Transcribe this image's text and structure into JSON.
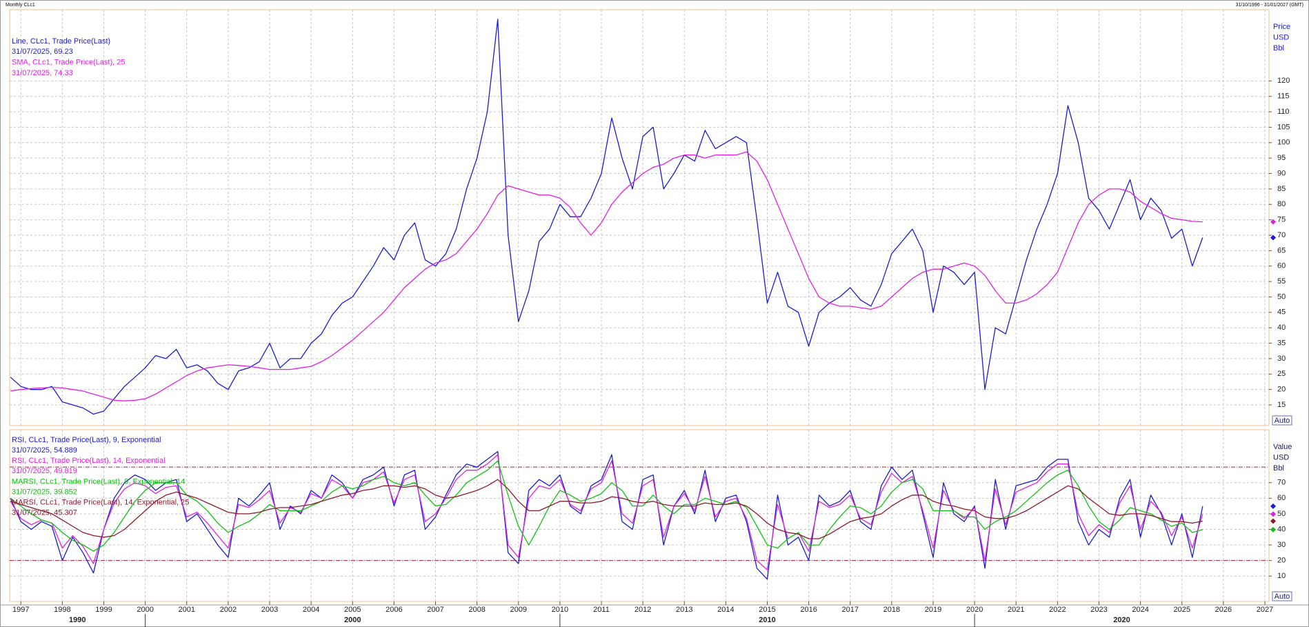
{
  "chart_data": [
    {
      "type": "line",
      "title": "Monthly CLc1",
      "subtitle": "31/10/1996 - 31/01/2027 (GMT)",
      "xlim": [
        1996.73,
        2027.1
      ],
      "ylim": [
        8.3,
        143.1
      ],
      "yticks": [
        15,
        20,
        25,
        30,
        35,
        40,
        45,
        50,
        55,
        60,
        65,
        70,
        75,
        80,
        85,
        90,
        95,
        100,
        105,
        110,
        115,
        120
      ],
      "grid": true,
      "y_label": [
        "Price",
        "USD",
        "Bbl"
      ],
      "auto_label": "Auto",
      "x": [
        1996.75,
        1997,
        1997.25,
        1997.5,
        1997.75,
        1998,
        1998.25,
        1998.5,
        1998.75,
        1999,
        1999.25,
        1999.5,
        1999.75,
        2000,
        2000.25,
        2000.5,
        2000.75,
        2001,
        2001.25,
        2001.5,
        2001.75,
        2002,
        2002.25,
        2002.5,
        2002.75,
        2003,
        2003.25,
        2003.5,
        2003.75,
        2004,
        2004.25,
        2004.5,
        2004.75,
        2005,
        2005.25,
        2005.5,
        2005.75,
        2006,
        2006.25,
        2006.5,
        2006.75,
        2007,
        2007.25,
        2007.5,
        2007.75,
        2008,
        2008.25,
        2008.5,
        2008.75,
        2009,
        2009.25,
        2009.5,
        2009.75,
        2010,
        2010.25,
        2010.5,
        2010.75,
        2011,
        2011.25,
        2011.5,
        2011.75,
        2012,
        2012.25,
        2012.5,
        2012.75,
        2013,
        2013.25,
        2013.5,
        2013.75,
        2014,
        2014.25,
        2014.5,
        2014.75,
        2015,
        2015.25,
        2015.5,
        2015.75,
        2016,
        2016.25,
        2016.5,
        2016.75,
        2017,
        2017.25,
        2017.5,
        2017.75,
        2018,
        2018.25,
        2018.5,
        2018.75,
        2019,
        2019.25,
        2019.5,
        2019.75,
        2020,
        2020.25,
        2020.5,
        2020.75,
        2021,
        2021.25,
        2021.5,
        2021.75,
        2022,
        2022.25,
        2022.5,
        2022.75,
        2023,
        2023.25,
        2023.5,
        2023.75,
        2024,
        2024.25,
        2024.5,
        2024.75,
        2025,
        2025.25,
        2025.5
      ],
      "series": [
        {
          "name": "Line, CLc1, Trade Price(Last)",
          "last_label": "31/07/2025, 69.23",
          "color": "#1a1ad8",
          "values": [
            24,
            21,
            20,
            20,
            21,
            16,
            15,
            14,
            12,
            13,
            17,
            21,
            24,
            27,
            31,
            30,
            33,
            27,
            28,
            26,
            22,
            20,
            26,
            27,
            29,
            35,
            27,
            30,
            30,
            35,
            38,
            44,
            48,
            50,
            55,
            60,
            66,
            62,
            70,
            74,
            62,
            60,
            64,
            72,
            85,
            95,
            110,
            140,
            70,
            42,
            52,
            68,
            72,
            80,
            76,
            76,
            82,
            90,
            108,
            95,
            85,
            102,
            105,
            85,
            90,
            96,
            94,
            104,
            98,
            100,
            102,
            100,
            75,
            48,
            58,
            47,
            45,
            34,
            45,
            48,
            50,
            53,
            49,
            47,
            54,
            64,
            68,
            72,
            65,
            45,
            60,
            58,
            54,
            58,
            20,
            40,
            38,
            50,
            62,
            72,
            80,
            90,
            112,
            100,
            82,
            78,
            72,
            80,
            88,
            75,
            82,
            78,
            69,
            72,
            60,
            69.23
          ]
        },
        {
          "name": "SMA, CLc1, Trade Price(Last),  25",
          "last_label": "31/07/2025, 74.33",
          "color": "#e020e0",
          "values": [
            19.5,
            20,
            20.3,
            20.5,
            20.7,
            20.5,
            20,
            19.5,
            18.5,
            17.5,
            16.5,
            16.3,
            16.5,
            17,
            18.5,
            20.5,
            22.5,
            24.5,
            26,
            27,
            27.5,
            28,
            27.8,
            27.5,
            27,
            26.5,
            26.5,
            26.5,
            27,
            27.5,
            29,
            31,
            33.5,
            36,
            39,
            42,
            45,
            49,
            53,
            56,
            59,
            61,
            62,
            64,
            68,
            72,
            77,
            83,
            86,
            85,
            84,
            83,
            83,
            82,
            79,
            74,
            70,
            74,
            80,
            84,
            87,
            90,
            92,
            93,
            95,
            96,
            96,
            95,
            96,
            96,
            96,
            97,
            94,
            88,
            80,
            72,
            64,
            56,
            50,
            48,
            47,
            47,
            46.5,
            46,
            47,
            50,
            53,
            56,
            58,
            59,
            59,
            60,
            61,
            60,
            57,
            52,
            48,
            48,
            49,
            51,
            54,
            58,
            66,
            74,
            80,
            83,
            85,
            85,
            84,
            81,
            79,
            77,
            75.5,
            75,
            74.5,
            74.33
          ]
        }
      ]
    },
    {
      "type": "line",
      "xlim": [
        1996.73,
        2027.1
      ],
      "ylim": [
        -6.3,
        104
      ],
      "yticks": [
        10,
        20,
        30,
        40,
        50,
        60,
        70
      ],
      "grid": true,
      "xticks": [
        1997,
        1998,
        1999,
        2000,
        2001,
        2002,
        2003,
        2004,
        2005,
        2006,
        2007,
        2008,
        2009,
        2010,
        2011,
        2012,
        2013,
        2014,
        2015,
        2016,
        2017,
        2018,
        2019,
        2020,
        2021,
        2022,
        2023,
        2024,
        2025,
        2026,
        2027
      ],
      "decades": [
        1990,
        2000,
        2010,
        2020
      ],
      "hlines": [
        80,
        20
      ],
      "hline_color": "#a0203a",
      "y_label": [
        "Value",
        "USD",
        "Bbl"
      ],
      "auto_label": "Auto",
      "x": [
        1996.75,
        1997,
        1997.25,
        1997.5,
        1997.75,
        1998,
        1998.25,
        1998.5,
        1998.75,
        1999,
        1999.25,
        1999.5,
        1999.75,
        2000,
        2000.25,
        2000.5,
        2000.75,
        2001,
        2001.25,
        2001.5,
        2001.75,
        2002,
        2002.25,
        2002.5,
        2002.75,
        2003,
        2003.25,
        2003.5,
        2003.75,
        2004,
        2004.25,
        2004.5,
        2004.75,
        2005,
        2005.25,
        2005.5,
        2005.75,
        2006,
        2006.25,
        2006.5,
        2006.75,
        2007,
        2007.25,
        2007.5,
        2007.75,
        2008,
        2008.25,
        2008.5,
        2008.75,
        2009,
        2009.25,
        2009.5,
        2009.75,
        2010,
        2010.25,
        2010.5,
        2010.75,
        2011,
        2011.25,
        2011.5,
        2011.75,
        2012,
        2012.25,
        2012.5,
        2012.75,
        2013,
        2013.25,
        2013.5,
        2013.75,
        2014,
        2014.25,
        2014.5,
        2014.75,
        2015,
        2015.25,
        2015.5,
        2015.75,
        2016,
        2016.25,
        2016.5,
        2016.75,
        2017,
        2017.25,
        2017.5,
        2017.75,
        2018,
        2018.25,
        2018.5,
        2018.75,
        2019,
        2019.25,
        2019.5,
        2019.75,
        2020,
        2020.25,
        2020.5,
        2020.75,
        2021,
        2021.25,
        2021.5,
        2021.75,
        2022,
        2022.25,
        2022.5,
        2022.75,
        2023,
        2023.25,
        2023.5,
        2023.75,
        2024,
        2024.25,
        2024.5,
        2024.75,
        2025,
        2025.25,
        2025.5
      ],
      "series": [
        {
          "name": "RSI, CLc1, Trade Price(Last),  9, Exponential",
          "last_label": "31/07/2025, 54.889",
          "color": "#1a1ad8",
          "values": [
            60,
            45,
            40,
            45,
            42,
            20,
            35,
            25,
            12,
            40,
            60,
            70,
            75,
            72,
            65,
            70,
            72,
            45,
            50,
            40,
            30,
            22,
            60,
            55,
            62,
            70,
            40,
            55,
            50,
            65,
            60,
            75,
            70,
            60,
            72,
            75,
            80,
            55,
            75,
            78,
            40,
            48,
            62,
            75,
            82,
            80,
            85,
            90,
            25,
            18,
            65,
            72,
            68,
            75,
            55,
            50,
            68,
            72,
            88,
            45,
            40,
            72,
            75,
            30,
            55,
            65,
            50,
            78,
            45,
            60,
            62,
            45,
            15,
            8,
            62,
            30,
            35,
            20,
            62,
            55,
            58,
            65,
            45,
            40,
            68,
            80,
            72,
            78,
            50,
            22,
            70,
            50,
            45,
            55,
            15,
            72,
            40,
            68,
            70,
            72,
            80,
            85,
            85,
            45,
            30,
            40,
            35,
            60,
            72,
            35,
            62,
            50,
            30,
            50,
            22,
            54.889
          ]
        },
        {
          "name": "RSI, CLc1, Trade Price(Last),  14, Exponential",
          "last_label": "31/07/2025, 49.819",
          "color": "#e020e0",
          "values": [
            58,
            47,
            43,
            46,
            44,
            28,
            36,
            29,
            18,
            40,
            57,
            66,
            70,
            68,
            63,
            67,
            68,
            48,
            51,
            44,
            36,
            28,
            56,
            54,
            59,
            65,
            44,
            54,
            51,
            63,
            60,
            72,
            68,
            60,
            70,
            72,
            77,
            57,
            72,
            75,
            45,
            50,
            60,
            72,
            78,
            78,
            82,
            88,
            30,
            22,
            60,
            68,
            66,
            72,
            56,
            52,
            66,
            70,
            84,
            50,
            44,
            68,
            72,
            35,
            55,
            63,
            52,
            74,
            48,
            58,
            60,
            47,
            20,
            14,
            56,
            34,
            38,
            26,
            58,
            54,
            56,
            62,
            47,
            43,
            64,
            76,
            70,
            74,
            52,
            28,
            65,
            52,
            47,
            54,
            20,
            66,
            43,
            64,
            67,
            70,
            77,
            82,
            82,
            50,
            36,
            43,
            38,
            57,
            68,
            40,
            58,
            51,
            36,
            48,
            28,
            49.819
          ]
        },
        {
          "name": "MARSI, CLc1, Trade Price(Last),  9, Exponential, 14",
          "last_label": "31/07/2025, 39.852",
          "color": "#10c010",
          "values": [
            60,
            55,
            50,
            46,
            44,
            38,
            33,
            30,
            26,
            30,
            38,
            48,
            58,
            65,
            70,
            70,
            70,
            62,
            58,
            52,
            44,
            38,
            42,
            45,
            50,
            56,
            52,
            52,
            52,
            55,
            58,
            64,
            68,
            66,
            68,
            72,
            74,
            70,
            68,
            70,
            62,
            55,
            56,
            62,
            70,
            74,
            78,
            84,
            62,
            42,
            30,
            42,
            55,
            65,
            62,
            58,
            60,
            63,
            70,
            65,
            55,
            55,
            62,
            55,
            50,
            56,
            56,
            60,
            58,
            56,
            58,
            54,
            42,
            30,
            28,
            34,
            38,
            30,
            30,
            40,
            48,
            55,
            54,
            50,
            55,
            64,
            70,
            72,
            66,
            52,
            52,
            52,
            48,
            48,
            40,
            45,
            48,
            52,
            58,
            64,
            70,
            75,
            78,
            68,
            55,
            45,
            40,
            46,
            54,
            52,
            50,
            46,
            42,
            44,
            38,
            39.852
          ]
        },
        {
          "name": "MARSI, CLc1, Trade Price(Last),  14, Exponential, 25",
          "last_label": "31/07/2025, 45.307",
          "color": "#8b1a2b",
          "values": [
            58,
            56,
            54,
            52,
            50,
            46,
            42,
            38,
            36,
            35,
            36,
            40,
            46,
            52,
            58,
            62,
            64,
            62,
            60,
            57,
            54,
            51,
            50,
            50,
            51,
            53,
            54,
            54,
            55,
            56,
            58,
            60,
            62,
            63,
            65,
            66,
            68,
            68,
            67,
            68,
            66,
            62,
            60,
            61,
            63,
            65,
            68,
            72,
            66,
            58,
            52,
            52,
            55,
            58,
            58,
            57,
            57,
            58,
            61,
            60,
            58,
            57,
            58,
            56,
            55,
            55,
            55,
            57,
            56,
            56,
            57,
            55,
            50,
            44,
            40,
            38,
            37,
            34,
            34,
            37,
            41,
            45,
            47,
            48,
            50,
            55,
            59,
            62,
            62,
            58,
            56,
            55,
            53,
            52,
            48,
            47,
            47,
            49,
            52,
            56,
            60,
            64,
            68,
            66,
            60,
            55,
            50,
            49,
            50,
            50,
            49,
            47,
            45,
            45,
            44,
            45.307
          ]
        }
      ]
    }
  ]
}
